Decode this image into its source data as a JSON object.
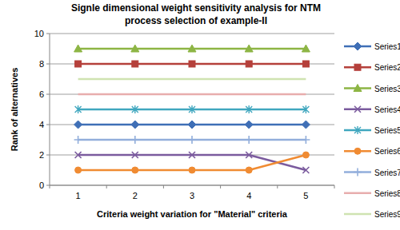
{
  "chart_data": {
    "type": "line",
    "title": [
      "Signle dimensional weight sensitivity analysis for NTM",
      "process selection of example-II"
    ],
    "x_label": "Criteria weight variation for \"Material\" criteria",
    "y_label": "Rank of alternatives",
    "categories": [
      "1",
      "2",
      "3",
      "4",
      "5"
    ],
    "ylim": [
      0,
      10
    ],
    "yticks": [
      0,
      2,
      4,
      6,
      8,
      10
    ],
    "grid": true,
    "legend": "right",
    "series": [
      {
        "name": "Series1",
        "color": "#3F6FB6",
        "marker": "diamond",
        "values": [
          4,
          4,
          4,
          4,
          4
        ]
      },
      {
        "name": "Series2",
        "color": "#B5403B",
        "marker": "square",
        "values": [
          8,
          8,
          8,
          8,
          8
        ]
      },
      {
        "name": "Series3",
        "color": "#8DB544",
        "marker": "triangle",
        "values": [
          9,
          9,
          9,
          9,
          9
        ]
      },
      {
        "name": "Series4",
        "color": "#7B5B9E",
        "marker": "x",
        "values": [
          2,
          2,
          2,
          2,
          1
        ]
      },
      {
        "name": "Series5",
        "color": "#40A7BF",
        "marker": "star",
        "values": [
          5,
          5,
          5,
          5,
          5
        ]
      },
      {
        "name": "Series6",
        "color": "#F08B32",
        "marker": "circle",
        "values": [
          1,
          1,
          1,
          1,
          2
        ]
      },
      {
        "name": "Series7",
        "color": "#92AEDB",
        "marker": "plus",
        "values": [
          3,
          3,
          3,
          3,
          3
        ]
      },
      {
        "name": "Series8",
        "color": "#E8ADAD",
        "marker": "none",
        "values": [
          6,
          6,
          6,
          6,
          6
        ]
      },
      {
        "name": "Series9",
        "color": "#CFE3B1",
        "marker": "none",
        "values": [
          7,
          7,
          7,
          7,
          7
        ]
      }
    ]
  }
}
